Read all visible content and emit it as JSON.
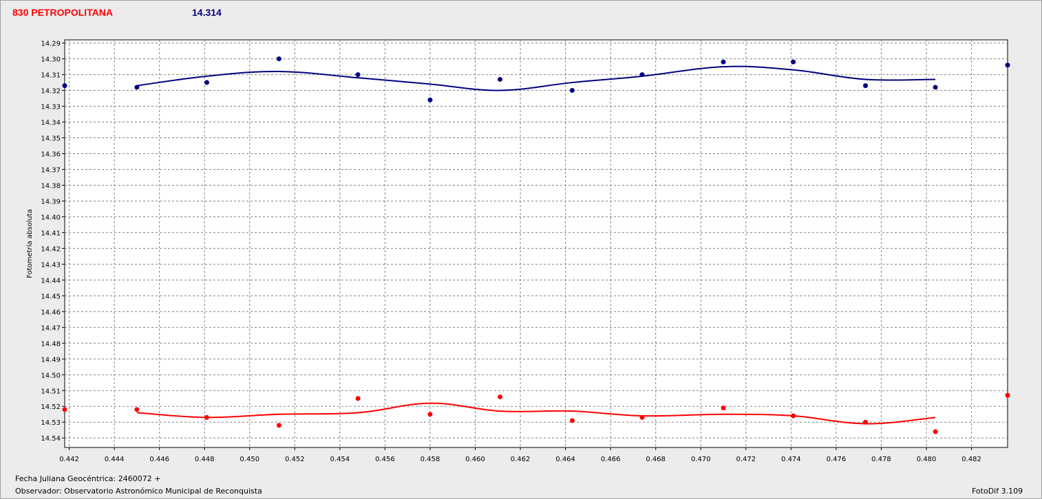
{
  "header": {
    "object_name": "830 PETROPOLITANA",
    "object_value": "14.314"
  },
  "footer": {
    "date_label": "Fecha Juliana Geocéntrica: 2460072 +",
    "observer_label": "Observador: Observatorio Astronómico Municipal de Reconquista",
    "software_label": "FotoDif 3.109"
  },
  "colors": {
    "series_blue": "#000080",
    "series_red": "#ff0000",
    "grid": "#808080",
    "plot_bg": "#ffffff"
  },
  "chart_data": {
    "type": "scatter",
    "ylabel": "Fotometría absoluta",
    "xlabel": "",
    "xlim": [
      0.4418,
      0.4836
    ],
    "ylim": [
      14.546,
      14.288
    ],
    "y_inverted": true,
    "grid": true,
    "x_ticks": [
      "0.442",
      "0.444",
      "0.446",
      "0.448",
      "0.450",
      "0.452",
      "0.454",
      "0.456",
      "0.458",
      "0.460",
      "0.462",
      "0.464",
      "0.466",
      "0.468",
      "0.470",
      "0.472",
      "0.474",
      "0.476",
      "0.478",
      "0.480",
      "0.482"
    ],
    "y_ticks": [
      "14.29",
      "14.30",
      "14.31",
      "14.32",
      "14.33",
      "14.34",
      "14.35",
      "14.36",
      "14.37",
      "14.38",
      "14.39",
      "14.40",
      "14.41",
      "14.42",
      "14.43",
      "14.44",
      "14.45",
      "14.46",
      "14.47",
      "14.48",
      "14.49",
      "14.50",
      "14.51",
      "14.52",
      "14.53",
      "14.54"
    ],
    "series": [
      {
        "color": "#000080",
        "points": [
          {
            "x": 0.4418,
            "y": 14.317
          },
          {
            "x": 0.445,
            "y": 14.318
          },
          {
            "x": 0.4481,
            "y": 14.315
          },
          {
            "x": 0.4513,
            "y": 14.3
          },
          {
            "x": 0.4548,
            "y": 14.31
          },
          {
            "x": 0.458,
            "y": 14.326
          },
          {
            "x": 0.4611,
            "y": 14.313
          },
          {
            "x": 0.4643,
            "y": 14.32
          },
          {
            "x": 0.4674,
            "y": 14.31
          },
          {
            "x": 0.471,
            "y": 14.302
          },
          {
            "x": 0.4741,
            "y": 14.302
          },
          {
            "x": 0.4773,
            "y": 14.317
          },
          {
            "x": 0.4804,
            "y": 14.318
          },
          {
            "x": 0.4836,
            "y": 14.304
          }
        ],
        "trend": [
          {
            "x": 0.445,
            "y": 14.317
          },
          {
            "x": 0.4481,
            "y": 14.311
          },
          {
            "x": 0.4513,
            "y": 14.308
          },
          {
            "x": 0.4548,
            "y": 14.312
          },
          {
            "x": 0.458,
            "y": 14.316
          },
          {
            "x": 0.4611,
            "y": 14.32
          },
          {
            "x": 0.4643,
            "y": 14.315
          },
          {
            "x": 0.4674,
            "y": 14.311
          },
          {
            "x": 0.471,
            "y": 14.305
          },
          {
            "x": 0.4741,
            "y": 14.307
          },
          {
            "x": 0.4773,
            "y": 14.313
          },
          {
            "x": 0.4804,
            "y": 14.313
          }
        ]
      },
      {
        "color": "#ff0000",
        "points": [
          {
            "x": 0.4418,
            "y": 14.522
          },
          {
            "x": 0.445,
            "y": 14.522
          },
          {
            "x": 0.4481,
            "y": 14.527
          },
          {
            "x": 0.4513,
            "y": 14.532
          },
          {
            "x": 0.4548,
            "y": 14.515
          },
          {
            "x": 0.458,
            "y": 14.525
          },
          {
            "x": 0.4611,
            "y": 14.514
          },
          {
            "x": 0.4643,
            "y": 14.529
          },
          {
            "x": 0.4674,
            "y": 14.527
          },
          {
            "x": 0.471,
            "y": 14.521
          },
          {
            "x": 0.4741,
            "y": 14.526
          },
          {
            "x": 0.4773,
            "y": 14.53
          },
          {
            "x": 0.4804,
            "y": 14.536
          },
          {
            "x": 0.4836,
            "y": 14.513
          }
        ],
        "trend": [
          {
            "x": 0.445,
            "y": 14.524
          },
          {
            "x": 0.4481,
            "y": 14.527
          },
          {
            "x": 0.4513,
            "y": 14.525
          },
          {
            "x": 0.4548,
            "y": 14.524
          },
          {
            "x": 0.458,
            "y": 14.518
          },
          {
            "x": 0.4611,
            "y": 14.523
          },
          {
            "x": 0.4643,
            "y": 14.523
          },
          {
            "x": 0.4674,
            "y": 14.526
          },
          {
            "x": 0.471,
            "y": 14.525
          },
          {
            "x": 0.4741,
            "y": 14.526
          },
          {
            "x": 0.4773,
            "y": 14.531
          },
          {
            "x": 0.4804,
            "y": 14.527
          }
        ]
      }
    ]
  }
}
